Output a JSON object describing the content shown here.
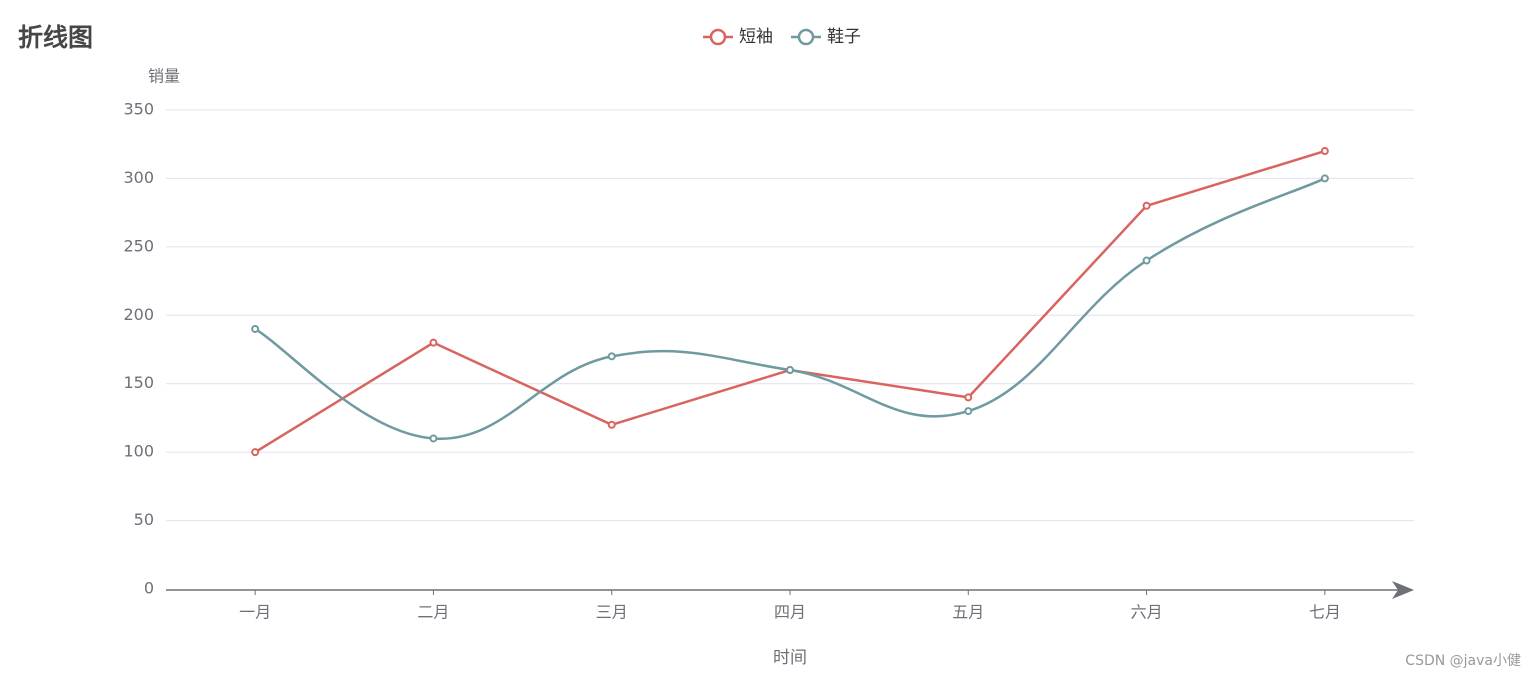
{
  "chart_data": {
    "type": "line",
    "title": "折线图",
    "ylabel": "销量",
    "xlabel": "时间",
    "categories": [
      "一月",
      "二月",
      "三月",
      "四月",
      "五月",
      "六月",
      "七月"
    ],
    "series": [
      {
        "name": "短袖",
        "color": "#d9645f",
        "smooth": false,
        "values": [
          100,
          180,
          120,
          160,
          140,
          280,
          320
        ]
      },
      {
        "name": "鞋子",
        "color": "#6e9aa0",
        "smooth": true,
        "values": [
          190,
          110,
          170,
          160,
          130,
          240,
          300
        ]
      }
    ],
    "ylim": [
      0,
      350
    ],
    "yticks": [
      0,
      50,
      100,
      150,
      200,
      250,
      300,
      350
    ],
    "grid": true,
    "legend": "top",
    "watermark": "CSDN @java小健"
  }
}
